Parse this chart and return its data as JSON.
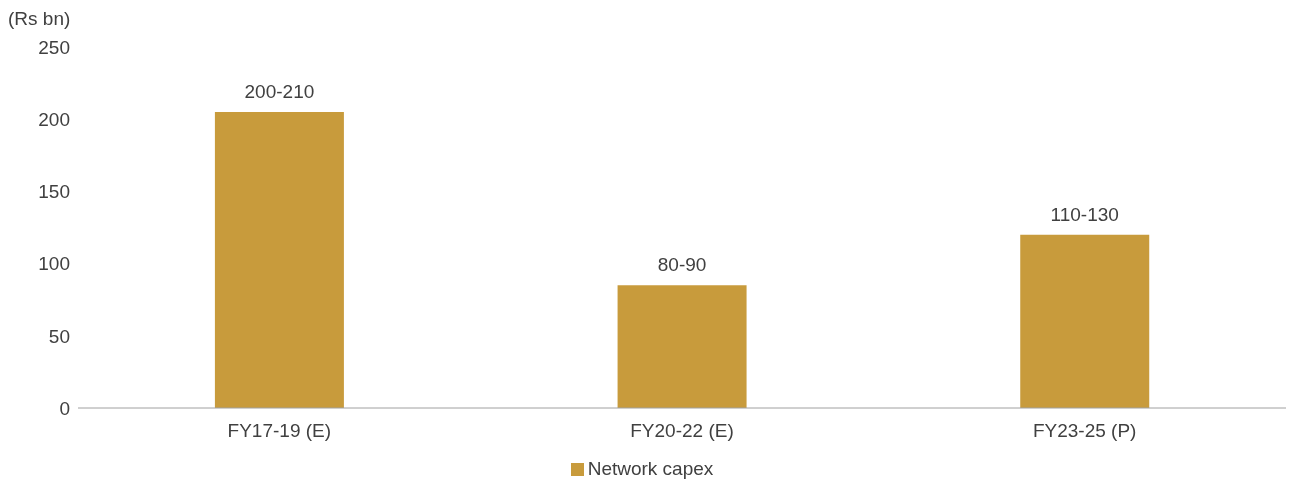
{
  "chart_data": {
    "type": "bar",
    "ylabel": "(Rs bn)",
    "categories": [
      "FY17-19 (E)",
      "FY20-22 (E)",
      "FY23-25 (P)"
    ],
    "series": [
      {
        "name": "Network capex",
        "color": "#c89b3c",
        "values": [
          205,
          85,
          120
        ],
        "value_labels": [
          "200-210",
          "80-90",
          "110-130"
        ]
      }
    ],
    "ylim": [
      0,
      250
    ],
    "yticks": [
      0,
      50,
      100,
      150,
      200,
      250
    ],
    "grid": false,
    "legend": "bottom"
  }
}
